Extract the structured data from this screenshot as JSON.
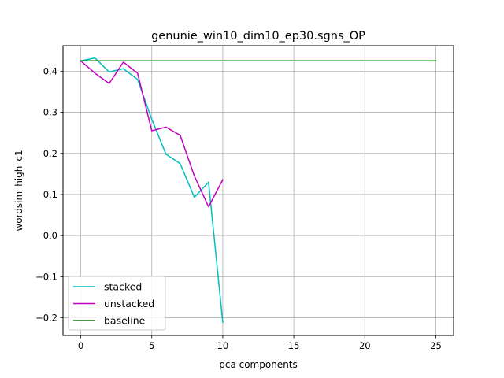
{
  "chart_data": {
    "type": "line",
    "title": "genunie_win10_dim10_ep30.sgns_OP",
    "xlabel": "pca components",
    "ylabel": "wordsim_high_c1",
    "xlim": [
      -1.25,
      26.25
    ],
    "ylim": [
      -0.243,
      0.462
    ],
    "xticks": [
      0,
      5,
      10,
      15,
      20,
      25
    ],
    "xtick_labels": [
      "0",
      "5",
      "10",
      "15",
      "20",
      "25"
    ],
    "yticks": [
      -0.2,
      -0.1,
      0.0,
      0.1,
      0.2,
      0.3,
      0.4
    ],
    "ytick_labels": [
      "−0.2",
      "−0.1",
      "0.0",
      "0.1",
      "0.2",
      "0.3",
      "0.4"
    ],
    "grid": true,
    "legend_position": "lower-left",
    "series": [
      {
        "name": "stacked",
        "color": "#00bfbf",
        "x": [
          0,
          1,
          2,
          3,
          4,
          5,
          6,
          7,
          8,
          9,
          10
        ],
        "y": [
          0.425,
          0.432,
          0.398,
          0.406,
          0.38,
          0.283,
          0.198,
          0.175,
          0.093,
          0.13,
          -0.211
        ]
      },
      {
        "name": "unstacked",
        "color": "#bf00bf",
        "x": [
          0,
          1,
          2,
          3,
          4,
          5,
          6,
          7,
          8,
          9,
          10
        ],
        "y": [
          0.425,
          0.395,
          0.37,
          0.422,
          0.395,
          0.255,
          0.264,
          0.244,
          0.145,
          0.07,
          0.136
        ]
      },
      {
        "name": "baseline",
        "color": "#008000",
        "x": [
          0,
          25
        ],
        "y": [
          0.425,
          0.425
        ]
      }
    ]
  }
}
